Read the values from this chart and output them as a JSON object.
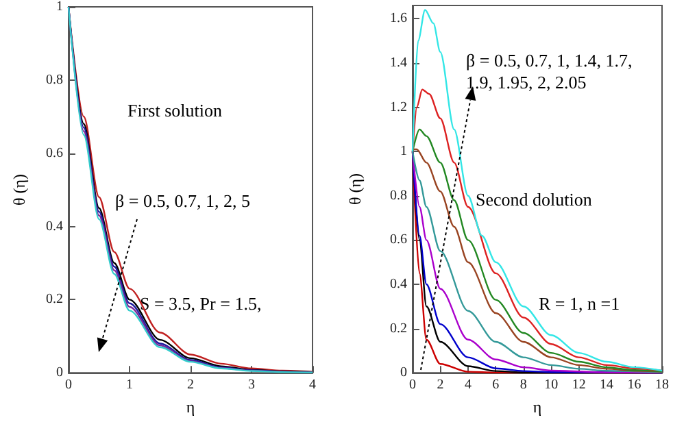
{
  "chart_data": [
    {
      "type": "line",
      "xlabel": "η",
      "ylabel": "θ (η)",
      "xlim": [
        0,
        4
      ],
      "xticks": [
        0,
        1,
        2,
        3,
        4
      ],
      "ylim": [
        0,
        1
      ],
      "yticks": [
        0,
        0.2,
        0.4,
        0.6,
        0.8,
        1
      ],
      "annotations": [
        "First solution",
        "β = 0.5, 0.7, 1, 2, 5",
        "S = 3.5, Pr = 1.5,"
      ],
      "series": [
        {
          "color": "#c02020",
          "x": [
            0,
            0.25,
            0.5,
            0.75,
            1,
            1.5,
            2,
            2.5,
            3,
            3.5,
            4
          ],
          "values": [
            1,
            0.7,
            0.48,
            0.33,
            0.23,
            0.11,
            0.05,
            0.025,
            0.012,
            0.006,
            0.003
          ]
        },
        {
          "color": "#000000",
          "x": [
            0,
            0.25,
            0.5,
            0.75,
            1,
            1.5,
            2,
            2.5,
            3,
            3.5,
            4
          ],
          "values": [
            1,
            0.68,
            0.45,
            0.3,
            0.2,
            0.09,
            0.04,
            0.018,
            0.008,
            0.004,
            0.002
          ]
        },
        {
          "color": "#1a1aa0",
          "x": [
            0,
            0.25,
            0.5,
            0.75,
            1,
            1.5,
            2,
            2.5,
            3,
            3.5,
            4
          ],
          "values": [
            1,
            0.67,
            0.44,
            0.29,
            0.19,
            0.08,
            0.035,
            0.015,
            0.007,
            0.003,
            0.001
          ]
        },
        {
          "color": "#7a2a9a",
          "x": [
            0,
            0.25,
            0.5,
            0.75,
            1,
            1.5,
            2,
            2.5,
            3,
            3.5,
            4
          ],
          "values": [
            1,
            0.66,
            0.43,
            0.28,
            0.18,
            0.075,
            0.032,
            0.013,
            0.006,
            0.003,
            0.001
          ]
        },
        {
          "color": "#33cccc",
          "x": [
            0,
            0.25,
            0.5,
            0.75,
            1,
            1.5,
            2,
            2.5,
            3,
            3.5,
            4
          ],
          "values": [
            1,
            0.65,
            0.42,
            0.27,
            0.17,
            0.07,
            0.03,
            0.012,
            0.005,
            0.002,
            0.001
          ]
        }
      ]
    },
    {
      "type": "line",
      "xlabel": "η",
      "ylabel": "θ (η)",
      "xlim": [
        0,
        18
      ],
      "xticks": [
        0,
        2,
        4,
        6,
        8,
        10,
        12,
        14,
        16,
        18
      ],
      "ylim": [
        0,
        1.66
      ],
      "yticks": [
        0,
        0.2,
        0.4,
        0.6,
        0.8,
        1,
        1.2,
        1.4,
        1.6
      ],
      "annotations": [
        "β = 0.5, 0.7, 1, 1.4, 1.7, 1.9, 1.95, 2, 2.05",
        "Second dolution",
        "R = 1, n =1"
      ],
      "series": [
        {
          "color": "#cc0000",
          "x": [
            0,
            0.5,
            1,
            2,
            4,
            6,
            18
          ],
          "values": [
            1,
            0.45,
            0.15,
            0.04,
            0.005,
            0.001,
            0
          ]
        },
        {
          "color": "#000000",
          "x": [
            0,
            0.5,
            1,
            2,
            4,
            6,
            8,
            18
          ],
          "values": [
            1,
            0.6,
            0.3,
            0.14,
            0.03,
            0.008,
            0.002,
            0
          ]
        },
        {
          "color": "#0000cc",
          "x": [
            0,
            0.5,
            1,
            2,
            4,
            6,
            8,
            10,
            18
          ],
          "values": [
            1,
            0.62,
            0.4,
            0.22,
            0.07,
            0.02,
            0.008,
            0.003,
            0
          ]
        },
        {
          "color": "#aa00cc",
          "x": [
            0,
            0.5,
            1,
            2,
            4,
            6,
            8,
            10,
            14,
            18
          ],
          "values": [
            1,
            0.75,
            0.6,
            0.38,
            0.15,
            0.06,
            0.025,
            0.01,
            0.002,
            0
          ]
        },
        {
          "color": "#339999",
          "x": [
            0,
            0.5,
            1,
            2,
            4,
            6,
            8,
            10,
            12,
            14,
            18
          ],
          "values": [
            1,
            0.87,
            0.75,
            0.55,
            0.28,
            0.14,
            0.07,
            0.035,
            0.018,
            0.009,
            0.002
          ]
        },
        {
          "color": "#994422",
          "x": [
            0,
            0.3,
            1,
            2,
            3,
            4,
            6,
            8,
            10,
            12,
            14,
            16,
            18
          ],
          "values": [
            1.01,
            1.01,
            0.95,
            0.82,
            0.66,
            0.5,
            0.27,
            0.14,
            0.07,
            0.035,
            0.018,
            0.009,
            0.005
          ]
        },
        {
          "color": "#228822",
          "x": [
            0,
            0.5,
            1,
            2,
            3,
            4,
            6,
            8,
            10,
            12,
            14,
            16,
            18
          ],
          "values": [
            1,
            1.1,
            1.07,
            0.95,
            0.78,
            0.6,
            0.33,
            0.18,
            0.09,
            0.05,
            0.025,
            0.012,
            0.006
          ]
        },
        {
          "color": "#dd2222",
          "x": [
            0,
            0.3,
            0.7,
            1.2,
            2,
            3,
            4,
            6,
            8,
            10,
            12,
            14,
            16,
            18
          ],
          "values": [
            1,
            1.2,
            1.28,
            1.26,
            1.15,
            0.95,
            0.75,
            0.45,
            0.25,
            0.13,
            0.07,
            0.035,
            0.02,
            0.01
          ]
        },
        {
          "color": "#33e6e6",
          "x": [
            0,
            0.4,
            0.9,
            1.5,
            2,
            3,
            4,
            5,
            6,
            8,
            10,
            12,
            14,
            16,
            18
          ],
          "values": [
            1,
            1.5,
            1.64,
            1.58,
            1.45,
            1.1,
            0.8,
            0.62,
            0.5,
            0.3,
            0.17,
            0.09,
            0.05,
            0.025,
            0.01
          ]
        }
      ]
    }
  ]
}
